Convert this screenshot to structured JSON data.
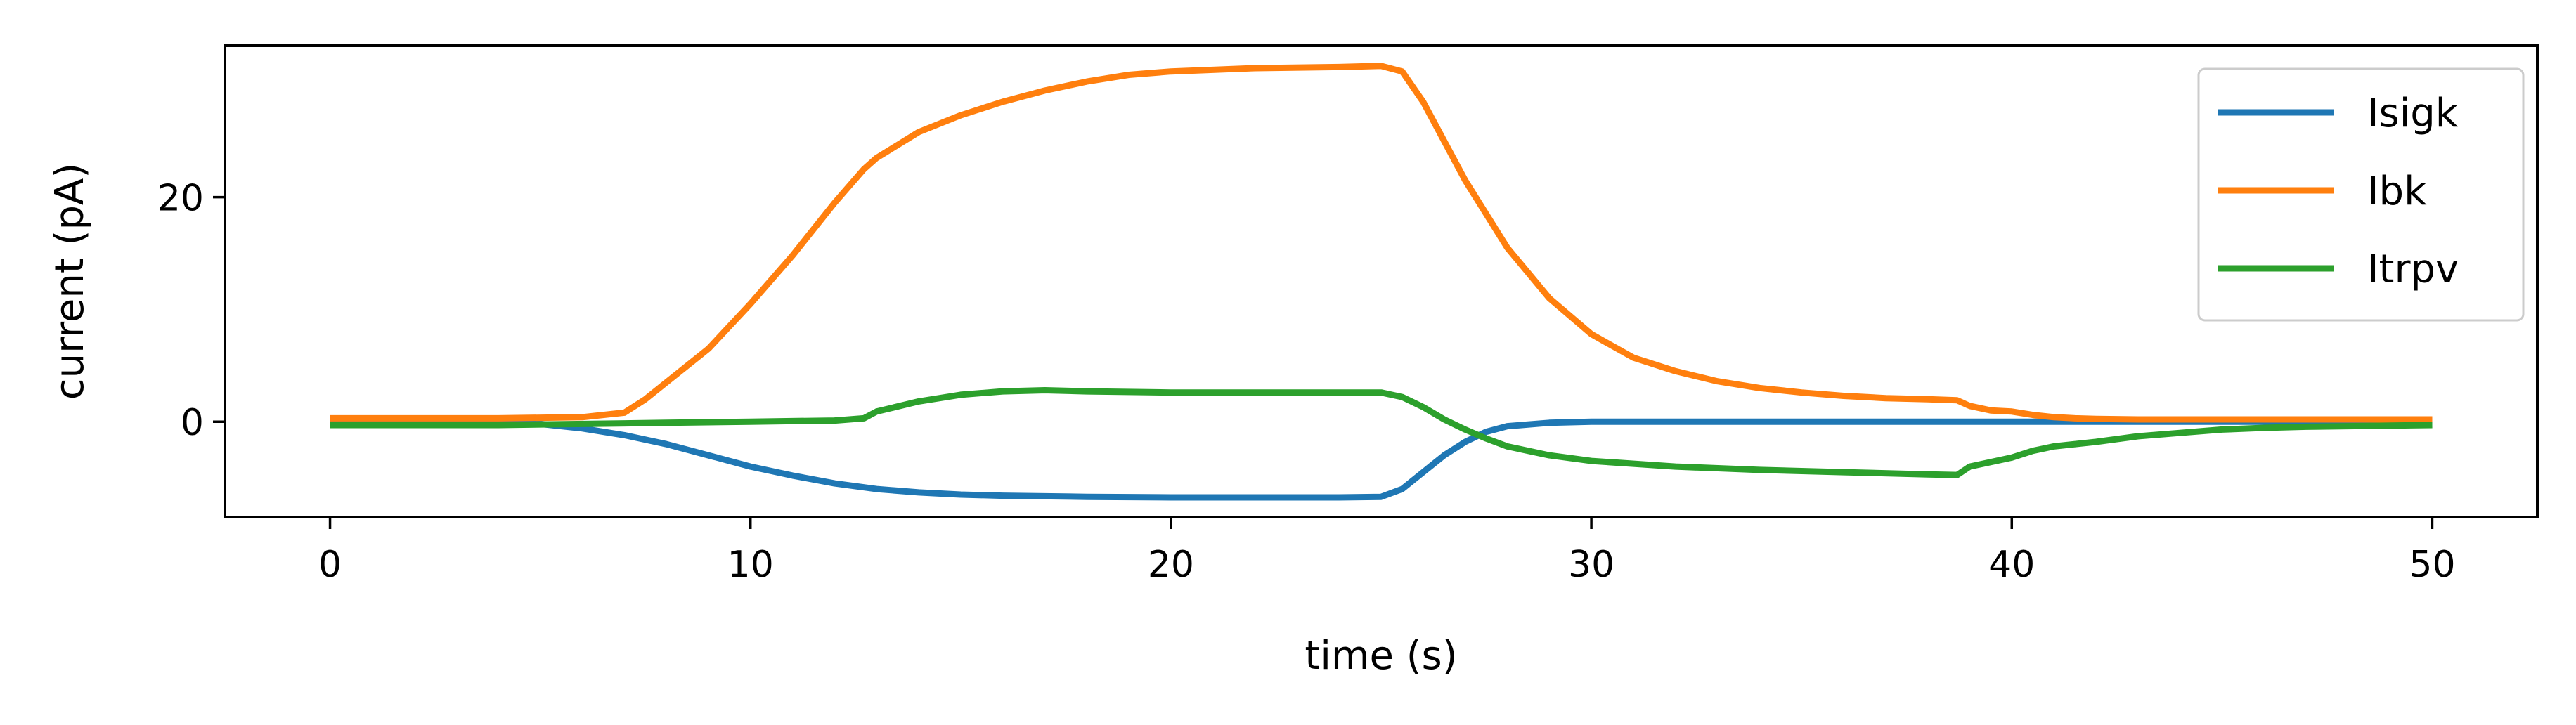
{
  "chart_data": {
    "type": "line",
    "xlabel": "time (s)",
    "ylabel": "current (pA)",
    "xlim": [
      -2.5,
      52.5
    ],
    "ylim": [
      -8.5,
      33.5
    ],
    "xticks": [
      0,
      10,
      20,
      30,
      40,
      50
    ],
    "xtick_labels": [
      "0",
      "10",
      "20",
      "30",
      "40",
      "50"
    ],
    "yticks": [
      0,
      20
    ],
    "ytick_labels": [
      "0",
      "20"
    ],
    "grid": false,
    "legend_position": "top-right",
    "series": [
      {
        "name": "Isigk",
        "color": "#1f77b4",
        "x": [
          0,
          2,
          4,
          5,
          6,
          7,
          8,
          9,
          10,
          11,
          12,
          13,
          14,
          15,
          16,
          18,
          20,
          22,
          24,
          25,
          25.5,
          26,
          26.5,
          27,
          27.5,
          28,
          29,
          30,
          35,
          40,
          45,
          50
        ],
        "y": [
          0,
          0,
          0,
          -0.2,
          -0.6,
          -1.2,
          -2.0,
          -3.0,
          -4.0,
          -4.8,
          -5.5,
          -6.0,
          -6.3,
          -6.5,
          -6.6,
          -6.7,
          -6.75,
          -6.75,
          -6.75,
          -6.7,
          -6.0,
          -4.5,
          -3.0,
          -1.8,
          -0.9,
          -0.4,
          -0.1,
          0,
          0,
          0,
          0,
          0
        ]
      },
      {
        "name": "Ibk",
        "color": "#ff7f0e",
        "x": [
          0,
          2,
          4,
          6,
          7,
          7.5,
          8,
          9,
          10,
          11,
          12,
          12.7,
          13,
          14,
          15,
          16,
          17,
          18,
          19,
          20,
          22,
          24,
          25,
          25.5,
          26,
          26.5,
          27,
          28,
          29,
          30,
          31,
          32,
          33,
          34,
          35,
          36,
          37,
          38,
          38.7,
          39,
          39.5,
          40,
          40.5,
          41,
          41.5,
          42,
          43,
          45,
          50
        ],
        "y": [
          0.3,
          0.3,
          0.3,
          0.4,
          0.8,
          2.0,
          3.5,
          6.5,
          10.5,
          14.8,
          19.5,
          22.5,
          23.5,
          25.8,
          27.3,
          28.5,
          29.5,
          30.3,
          30.9,
          31.2,
          31.5,
          31.6,
          31.7,
          31.2,
          28.5,
          25.0,
          21.5,
          15.5,
          11.0,
          7.8,
          5.7,
          4.5,
          3.6,
          3.0,
          2.6,
          2.3,
          2.1,
          2.0,
          1.9,
          1.4,
          1.0,
          0.9,
          0.6,
          0.4,
          0.3,
          0.25,
          0.2,
          0.2,
          0.2
        ]
      },
      {
        "name": "Itrpv",
        "color": "#2ca02c",
        "x": [
          0,
          4,
          8,
          10,
          12,
          12.7,
          13,
          14,
          15,
          16,
          17,
          18,
          20,
          22,
          24,
          25,
          25.5,
          26,
          26.5,
          27,
          27.5,
          28,
          29,
          30,
          32,
          34,
          36,
          38,
          38.7,
          39,
          40,
          40.5,
          41,
          42,
          43,
          44,
          45,
          46,
          47,
          48,
          50
        ],
        "y": [
          -0.3,
          -0.3,
          -0.1,
          0,
          0.1,
          0.3,
          0.9,
          1.8,
          2.4,
          2.7,
          2.8,
          2.7,
          2.6,
          2.6,
          2.6,
          2.6,
          2.2,
          1.3,
          0.2,
          -0.7,
          -1.5,
          -2.2,
          -3.0,
          -3.5,
          -4.0,
          -4.3,
          -4.5,
          -4.7,
          -4.75,
          -4.0,
          -3.2,
          -2.6,
          -2.2,
          -1.8,
          -1.3,
          -1.0,
          -0.7,
          -0.55,
          -0.45,
          -0.4,
          -0.3
        ]
      }
    ]
  }
}
